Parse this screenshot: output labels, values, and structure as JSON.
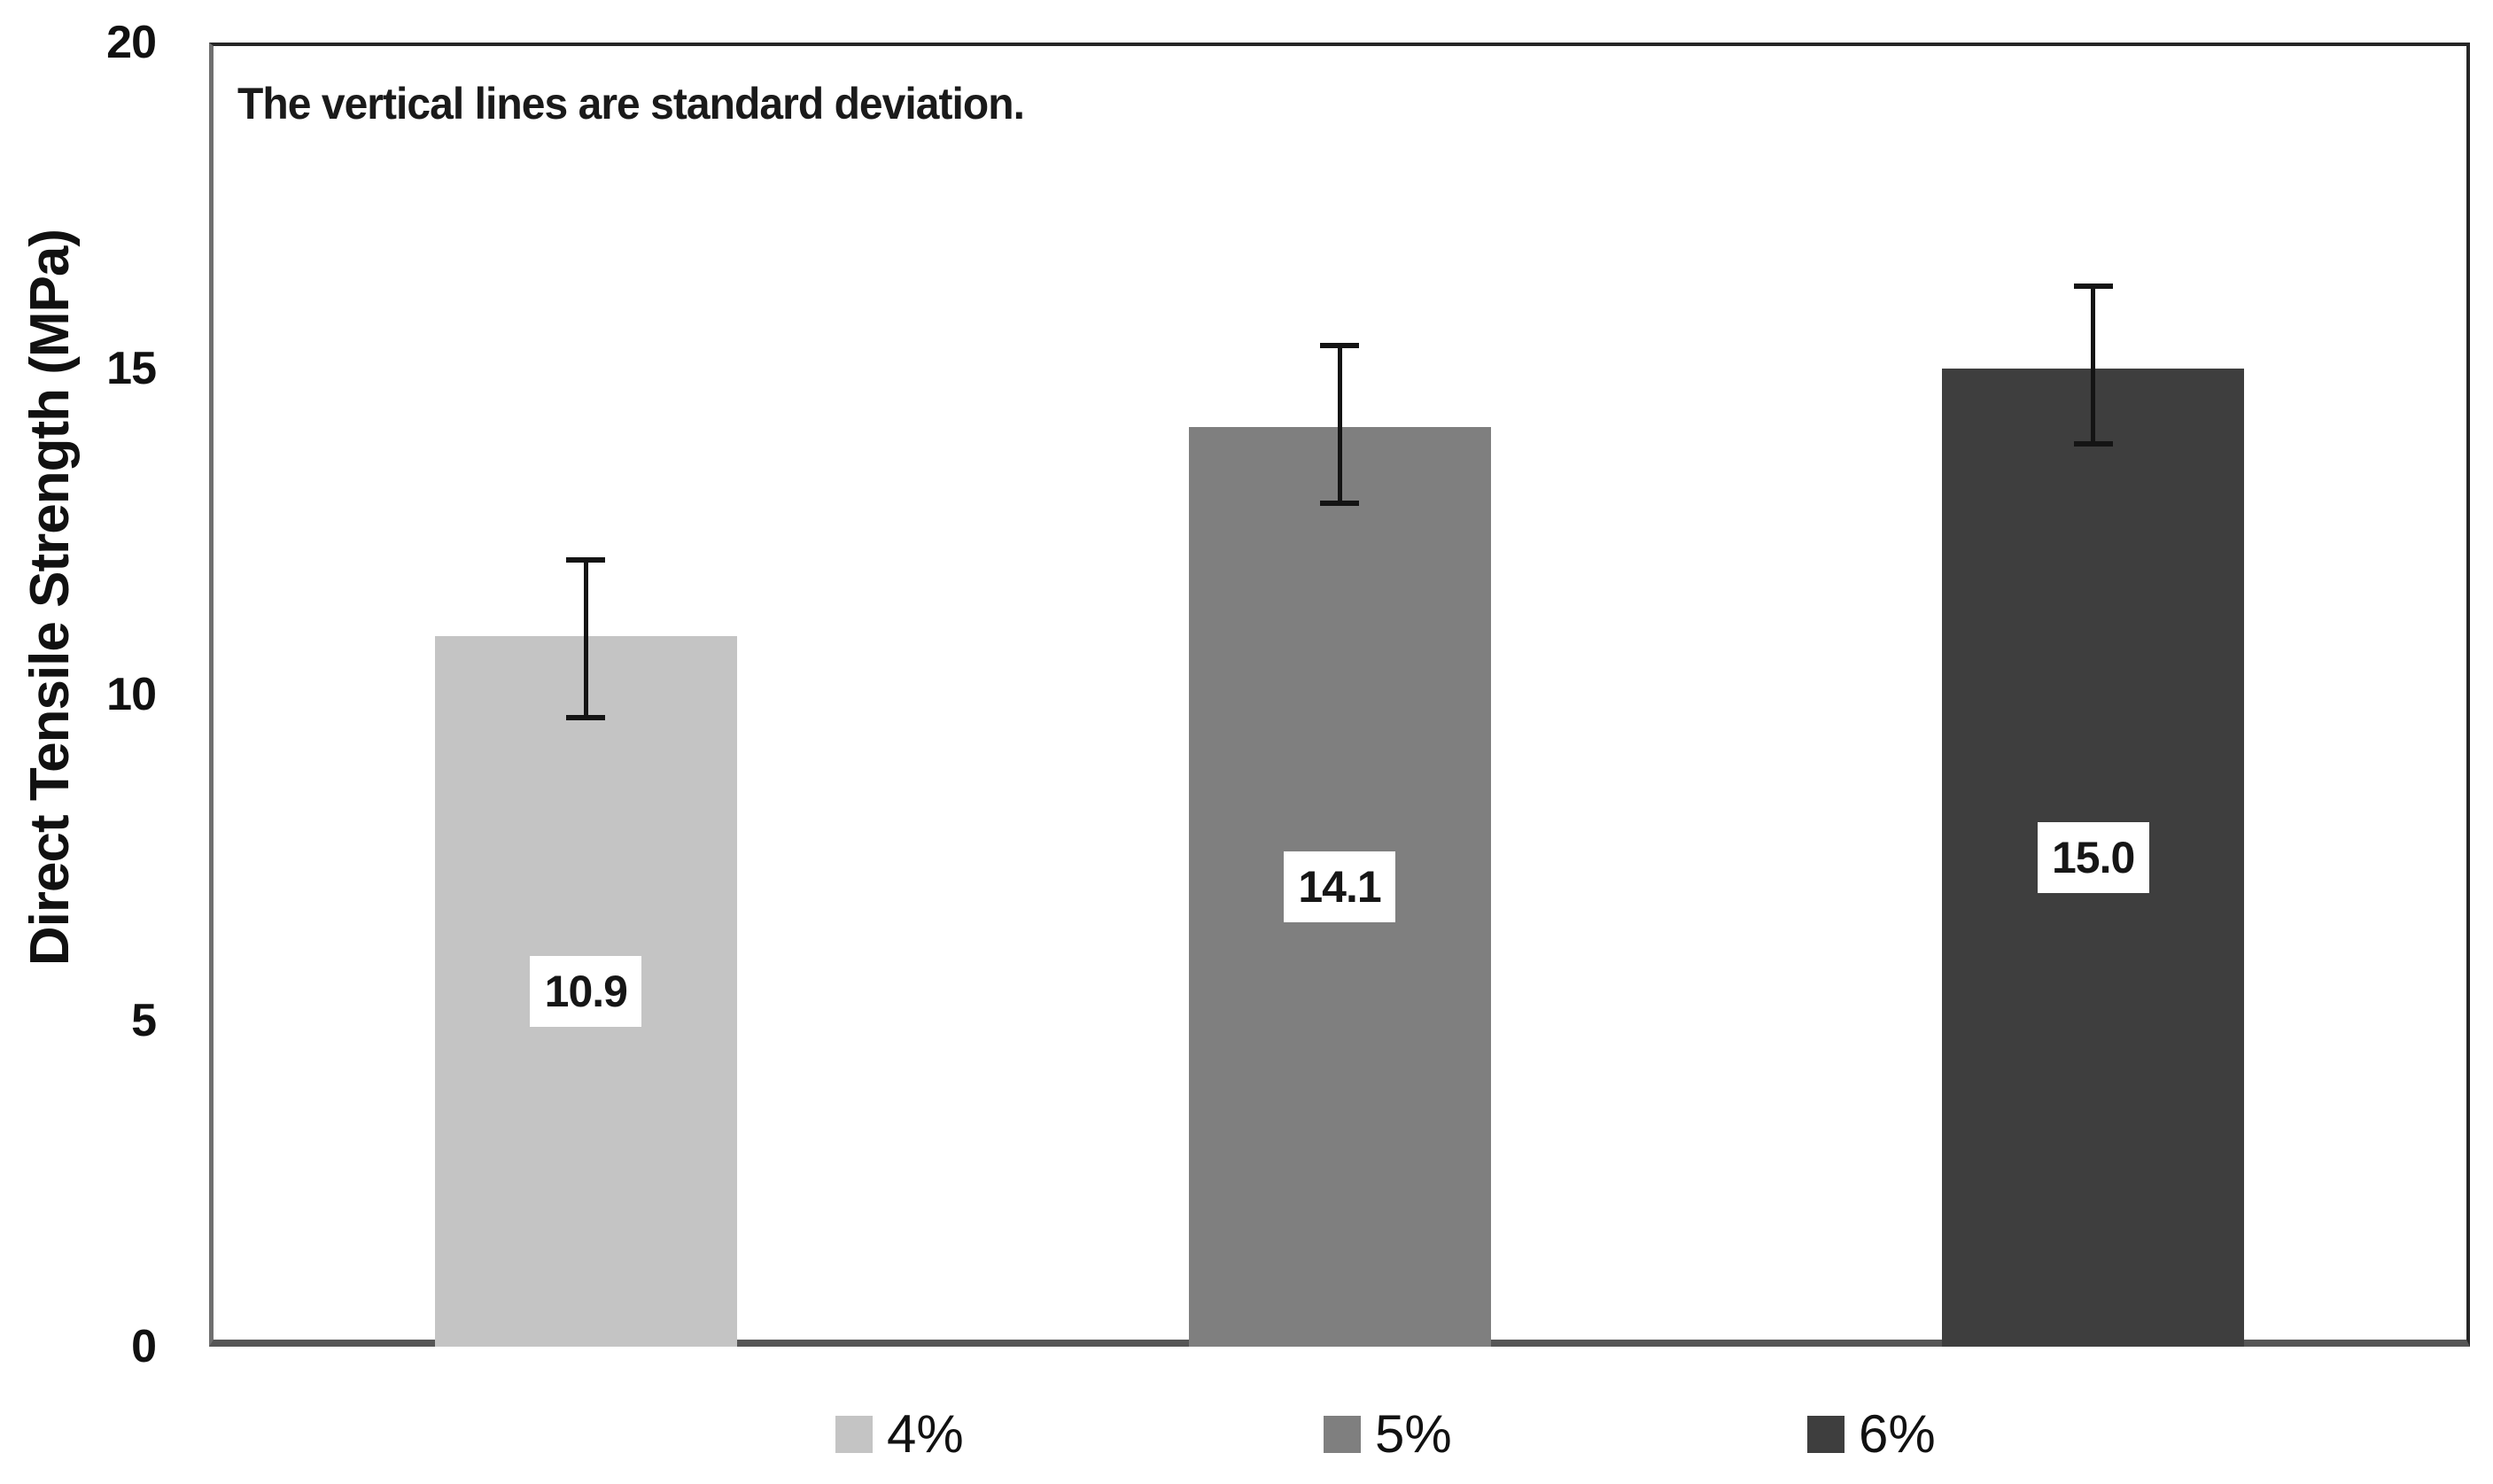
{
  "chart_data": {
    "type": "bar",
    "title": "",
    "xlabel": "",
    "ylabel": "Direct Tensile Strength (MPa)",
    "annotation": "The vertical lines are standard deviation.",
    "categories": [
      "4%",
      "5%",
      "6%"
    ],
    "values": [
      10.9,
      14.1,
      15.0
    ],
    "bar_labels": [
      "10.9",
      "14.1",
      "15.0"
    ],
    "error_low": [
      9.6,
      12.9,
      13.8
    ],
    "error_high": [
      12.1,
      15.4,
      16.3
    ],
    "colors": [
      "#c4c4c4",
      "#7f7f7f",
      "#3e3e3e"
    ],
    "ylim": [
      0,
      20
    ],
    "yticks": [
      0,
      5,
      10,
      15,
      20
    ],
    "grid": false,
    "legend_position": "bottom",
    "legend_entries": [
      "4%",
      "5%",
      "6%"
    ],
    "error_bar_color": "#141414",
    "bar_label_background": "#ffffff"
  }
}
